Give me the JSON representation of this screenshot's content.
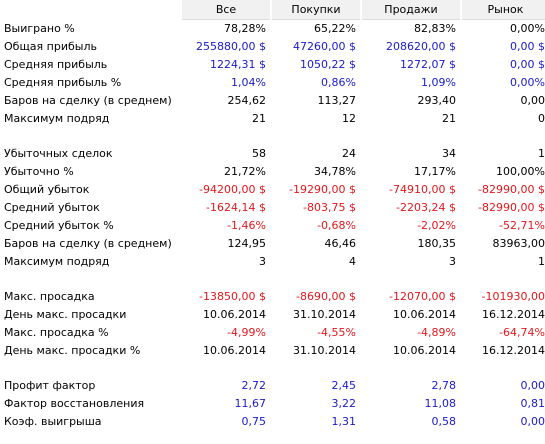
{
  "header": {
    "columns": [
      "Все",
      "Покупки",
      "Продажи",
      "Рынок"
    ]
  },
  "colors": {
    "positive": "#1a1acc",
    "negative": "#e3171c",
    "neutral": "#000000",
    "header_bg": "#f1f1f1"
  },
  "rows": [
    {
      "label": "Выиграно %",
      "bold": false,
      "values": [
        "78,28%",
        "65,22%",
        "82,83%",
        "0,00%"
      ],
      "color": "blk"
    },
    {
      "label": "Общая прибыль",
      "bold": false,
      "values": [
        "255880,00 $",
        "47260,00 $",
        "208620,00 $",
        "0,00 $"
      ],
      "color": "pos"
    },
    {
      "label": "Средняя прибыль",
      "bold": false,
      "values": [
        "1224,31 $",
        "1050,22 $",
        "1272,07 $",
        "0,00 $"
      ],
      "color": "pos"
    },
    {
      "label": "Средняя прибыль %",
      "bold": false,
      "values": [
        "1,04%",
        "0,86%",
        "1,09%",
        "0,00%"
      ],
      "color": "pos"
    },
    {
      "label": "Баров на сделку (в среднем)",
      "bold": false,
      "values": [
        "254,62",
        "113,27",
        "293,40",
        "0,00"
      ],
      "color": "blk"
    },
    {
      "label": "Максимум подряд",
      "bold": false,
      "values": [
        "21",
        "12",
        "21",
        "0"
      ],
      "color": "blk"
    },
    {
      "blank": true
    },
    {
      "label": "Убыточных сделок",
      "bold": true,
      "values": [
        "58",
        "24",
        "34",
        "1"
      ],
      "color": "blk"
    },
    {
      "label": "Убыточно %",
      "bold": false,
      "values": [
        "21,72%",
        "34,78%",
        "17,17%",
        "100,00%"
      ],
      "color": "blk"
    },
    {
      "label": "Общий убыток",
      "bold": false,
      "values": [
        "-94200,00 $",
        "-19290,00 $",
        "-74910,00 $",
        "-82990,00 $"
      ],
      "color": "neg"
    },
    {
      "label": "Средний убыток",
      "bold": false,
      "values": [
        "-1624,14 $",
        "-803,75 $",
        "-2203,24 $",
        "-82990,00 $"
      ],
      "color": "neg"
    },
    {
      "label": "Средний убыток %",
      "bold": false,
      "values": [
        "-1,46%",
        "-0,68%",
        "-2,02%",
        "-52,71%"
      ],
      "color": "neg"
    },
    {
      "label": "Баров на сделку (в среднем)",
      "bold": false,
      "values": [
        "124,95",
        "46,46",
        "180,35",
        "83963,00"
      ],
      "color": "blk"
    },
    {
      "label": "Максимум подряд",
      "bold": false,
      "values": [
        "3",
        "4",
        "3",
        "1"
      ],
      "color": "blk"
    },
    {
      "blank": true
    },
    {
      "label": "Макс. просадка",
      "bold": false,
      "values": [
        "-13850,00 $",
        "-8690,00 $",
        "-12070,00 $",
        "-101930,00"
      ],
      "color": "neg"
    },
    {
      "label": "День макс. просадки",
      "bold": false,
      "values": [
        "10.06.2014",
        "31.10.2014",
        "10.06.2014",
        "16.12.2014"
      ],
      "color": "blk"
    },
    {
      "label": "Макс. просадка %",
      "bold": false,
      "values": [
        "-4,99%",
        "-4,55%",
        "-4,89%",
        "-64,74%"
      ],
      "color": "neg"
    },
    {
      "label": "День макс. просадки %",
      "bold": false,
      "values": [
        "10.06.2014",
        "31.10.2014",
        "10.06.2014",
        "16.12.2014"
      ],
      "color": "blk"
    },
    {
      "blank": true
    },
    {
      "label": "Профит фактор",
      "bold": false,
      "values": [
        "2,72",
        "2,45",
        "2,78",
        "0,00"
      ],
      "color": "pos"
    },
    {
      "label": "Фактор восстановления",
      "bold": false,
      "values": [
        "11,67",
        "3,22",
        "11,08",
        "0,81"
      ],
      "color": "pos"
    },
    {
      "label": "Коэф. выигрыша",
      "bold": false,
      "values": [
        "0,75",
        "1,31",
        "0,58",
        "0,00"
      ],
      "color": "pos"
    }
  ]
}
